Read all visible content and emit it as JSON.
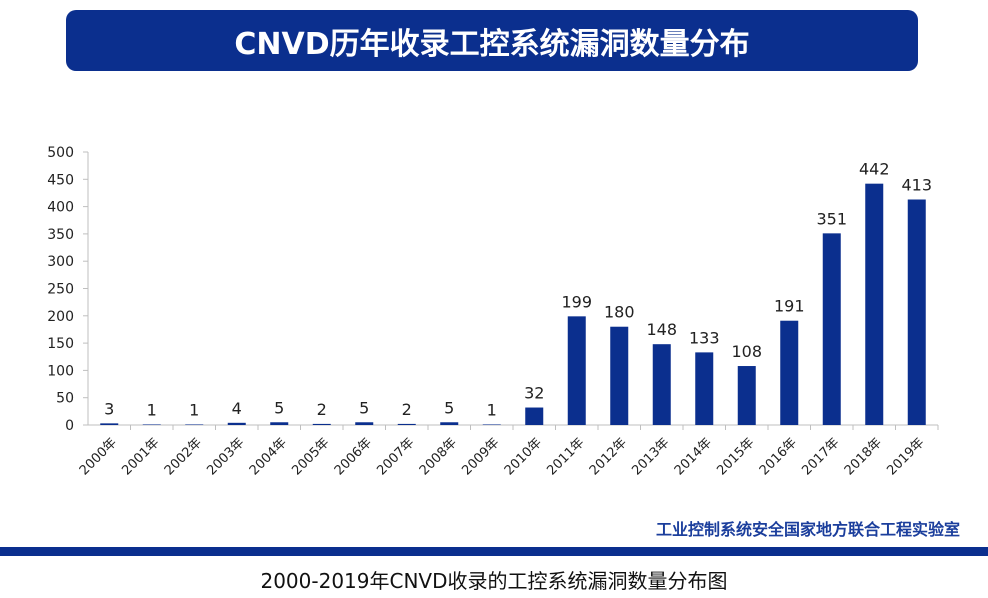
{
  "header": {
    "title": "CNVD历年收录工控系统漏洞数量分布"
  },
  "footer": {
    "source": "工业控制系统安全国家地方联合工程实验室",
    "caption": "2000-2019年CNVD收录的工控系统漏洞数量分布图"
  },
  "colors": {
    "bar": "#0b2f8e",
    "banner": "#0b2f8e",
    "axis": "#bfbfbf"
  },
  "chart_data": {
    "type": "bar",
    "title": "CNVD历年收录工控系统漏洞数量分布",
    "xlabel": "",
    "ylabel": "",
    "categories": [
      "2000年",
      "2001年",
      "2002年",
      "2003年",
      "2004年",
      "2005年",
      "2006年",
      "2007年",
      "2008年",
      "2009年",
      "2010年",
      "2011年",
      "2012年",
      "2013年",
      "2014年",
      "2015年",
      "2016年",
      "2017年",
      "2018年",
      "2019年"
    ],
    "values": [
      3,
      1,
      1,
      4,
      5,
      2,
      5,
      2,
      5,
      1,
      32,
      199,
      180,
      148,
      133,
      108,
      191,
      351,
      442,
      413
    ],
    "ylim": [
      0,
      500
    ],
    "yticks": [
      0,
      50,
      100,
      150,
      200,
      250,
      300,
      350,
      400,
      450,
      500
    ],
    "grid": false,
    "legend": "none",
    "data_labels": true
  }
}
